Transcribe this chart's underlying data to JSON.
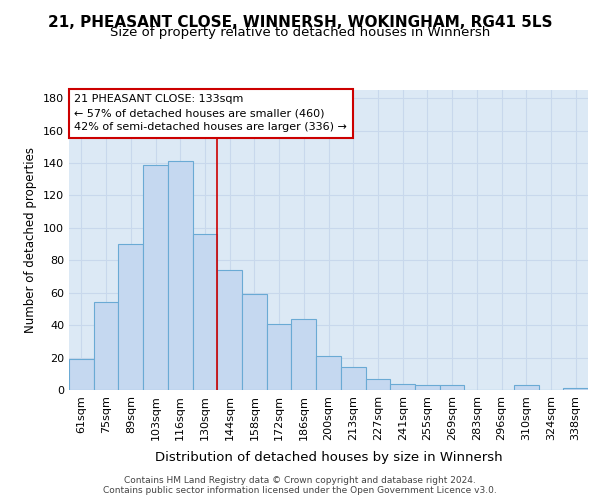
{
  "title": "21, PHEASANT CLOSE, WINNERSH, WOKINGHAM, RG41 5LS",
  "subtitle": "Size of property relative to detached houses in Winnersh",
  "xlabel": "Distribution of detached houses by size in Winnersh",
  "ylabel": "Number of detached properties",
  "categories": [
    "61sqm",
    "75sqm",
    "89sqm",
    "103sqm",
    "116sqm",
    "130sqm",
    "144sqm",
    "158sqm",
    "172sqm",
    "186sqm",
    "200sqm",
    "213sqm",
    "227sqm",
    "241sqm",
    "255sqm",
    "269sqm",
    "283sqm",
    "296sqm",
    "310sqm",
    "324sqm",
    "338sqm"
  ],
  "values": [
    19,
    54,
    90,
    139,
    141,
    96,
    74,
    59,
    41,
    44,
    21,
    14,
    7,
    4,
    3,
    3,
    0,
    0,
    3,
    0,
    1
  ],
  "bar_color": "#c5d8f0",
  "bar_edge_color": "#6aaad4",
  "vline_color": "#cc0000",
  "vline_x_index": 5,
  "annotation_line0": "21 PHEASANT CLOSE: 133sqm",
  "annotation_line1": "← 57% of detached houses are smaller (460)",
  "annotation_line2": "42% of semi-detached houses are larger (336) →",
  "annotation_box_facecolor": "#ffffff",
  "annotation_box_edgecolor": "#cc0000",
  "grid_color": "#c8d8ec",
  "plot_bg_color": "#dce9f5",
  "fig_bg_color": "#ffffff",
  "ylim": [
    0,
    185
  ],
  "yticks": [
    0,
    20,
    40,
    60,
    80,
    100,
    120,
    140,
    160,
    180
  ],
  "title_fontsize": 11,
  "subtitle_fontsize": 9.5,
  "xlabel_fontsize": 9.5,
  "ylabel_fontsize": 8.5,
  "tick_fontsize": 8,
  "footer_text": "Contains HM Land Registry data © Crown copyright and database right 2024.\nContains public sector information licensed under the Open Government Licence v3.0."
}
